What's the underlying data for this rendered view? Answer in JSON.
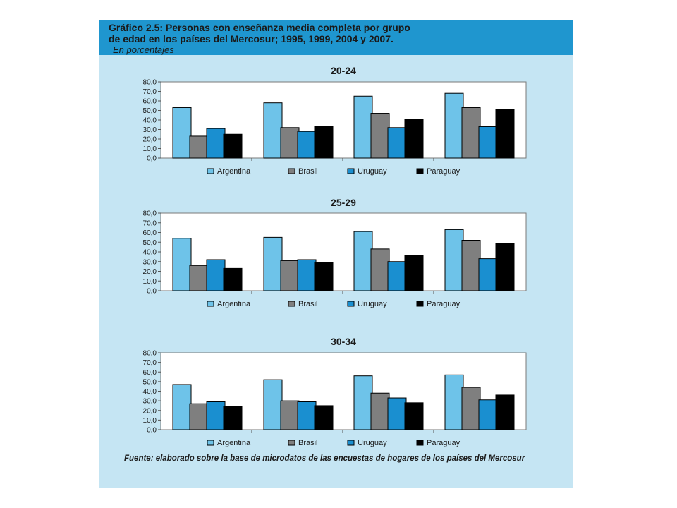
{
  "figure": {
    "title_label": "Gráfico 2.5:",
    "title_line1_rest": "Personas con enseñanza media completa por grupo",
    "title_line2": "de edad en los países del Mercosur; 1995, 1999, 2004 y 2007.",
    "subtitle": "En porcentajes",
    "source": "Fuente: elaborado sobre la base de microdatos de las encuestas de hogares de los países del Mercosur"
  },
  "colors": {
    "header_bg": "#1f96cf",
    "panel_bg": "#c5e5f3",
    "plot_bg": "#ffffff",
    "series": [
      "#6ec3e9",
      "#7f7f7f",
      "#1a8fd0",
      "#000000"
    ]
  },
  "chart_data": [
    {
      "type": "bar",
      "title": "20-24",
      "categories": [
        "",
        "",
        "",
        ""
      ],
      "series": [
        {
          "name": "Argentina",
          "values": [
            53,
            58,
            65,
            68
          ]
        },
        {
          "name": "Brasil",
          "values": [
            23,
            32,
            47,
            53
          ]
        },
        {
          "name": "Uruguay",
          "values": [
            31,
            28,
            32,
            33
          ]
        },
        {
          "name": "Paraguay",
          "values": [
            25,
            33,
            41,
            51
          ]
        }
      ],
      "yticks": [
        "80,0",
        "70,0",
        "60,0",
        "50,0",
        "40,0",
        "30,0",
        "20,0",
        "10,0",
        "0,0"
      ],
      "ylim": [
        0,
        80
      ],
      "grid": false,
      "legend_position": "bottom"
    },
    {
      "type": "bar",
      "title": "25-29",
      "categories": [
        "",
        "",
        "",
        ""
      ],
      "series": [
        {
          "name": "Argentina",
          "values": [
            54,
            55,
            61,
            63
          ]
        },
        {
          "name": "Brasil",
          "values": [
            26,
            31,
            43,
            52
          ]
        },
        {
          "name": "Uruguay",
          "values": [
            32,
            32,
            30,
            33
          ]
        },
        {
          "name": "Paraguay",
          "values": [
            23,
            29,
            36,
            49
          ]
        }
      ],
      "yticks": [
        "80,0",
        "70,0",
        "60,0",
        "50,0",
        "40,0",
        "30,0",
        "20,0",
        "10,0",
        "0,0"
      ],
      "ylim": [
        0,
        80
      ],
      "grid": false,
      "legend_position": "bottom"
    },
    {
      "type": "bar",
      "title": "30-34",
      "categories": [
        "",
        "",
        "",
        ""
      ],
      "series": [
        {
          "name": "Argentina",
          "values": [
            47,
            52,
            56,
            57
          ]
        },
        {
          "name": "Brasil",
          "values": [
            27,
            30,
            38,
            44
          ]
        },
        {
          "name": "Uruguay",
          "values": [
            29,
            29,
            33,
            31
          ]
        },
        {
          "name": "Paraguay",
          "values": [
            24,
            25,
            28,
            36
          ]
        }
      ],
      "yticks": [
        "80,0",
        "70,0",
        "60,0",
        "50,0",
        "40,0",
        "30,0",
        "20,0",
        "10,0",
        "0,0"
      ],
      "ylim": [
        0,
        80
      ],
      "grid": false,
      "legend_position": "bottom"
    }
  ]
}
